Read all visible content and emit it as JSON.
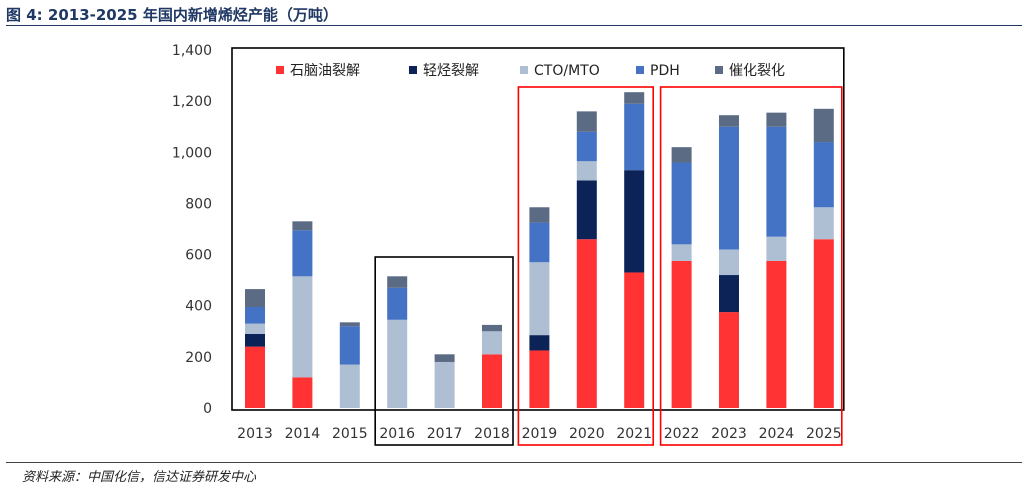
{
  "header": {
    "title": "图 4:  2013-2025 年国内新增烯烃产能（万吨）"
  },
  "footer": {
    "source": "资料来源：中国化信，信达证券研发中心"
  },
  "colors": {
    "naphtha": "#ff3333",
    "light_hc": "#0b2357",
    "cto": "#afbfd3",
    "pdh": "#4472c4",
    "fcc": "#5b6b84",
    "black_box": "#000000",
    "red_box": "#ff0000"
  },
  "chart_data": {
    "type": "bar",
    "stacked": true,
    "title": "2013-2025 年国内新增烯烃产能（万吨）",
    "xlabel": "",
    "ylabel": "",
    "ylim": [
      0,
      1400
    ],
    "yticks": [
      0,
      200,
      400,
      600,
      800,
      1000,
      1200,
      1400
    ],
    "ytick_labels": [
      "0",
      "200",
      "400",
      "600",
      "800",
      "1,000",
      "1,200",
      "1,400"
    ],
    "grid": false,
    "legend_position": "top",
    "categories": [
      "2013",
      "2014",
      "2015",
      "2016",
      "2017",
      "2018",
      "2019",
      "2020",
      "2021",
      "2022",
      "2023",
      "2024",
      "2025"
    ],
    "series": [
      {
        "name": "石脑油裂解",
        "color": "#ff3333",
        "values": [
          240,
          120,
          0,
          0,
          0,
          210,
          225,
          660,
          530,
          575,
          375,
          575,
          660
        ]
      },
      {
        "name": "轻烃裂解",
        "color": "#0b2357",
        "values": [
          50,
          0,
          0,
          0,
          0,
          0,
          60,
          230,
          400,
          0,
          145,
          0,
          0
        ]
      },
      {
        "name": "CTO/MTO",
        "color": "#afbfd3",
        "values": [
          40,
          395,
          170,
          345,
          180,
          90,
          285,
          75,
          0,
          65,
          100,
          95,
          125
        ]
      },
      {
        "name": "PDH",
        "color": "#4472c4",
        "values": [
          65,
          180,
          150,
          125,
          0,
          0,
          155,
          115,
          260,
          320,
          480,
          430,
          255
        ]
      },
      {
        "name": "催化裂化",
        "color": "#5b6b84",
        "values": [
          70,
          35,
          15,
          45,
          30,
          25,
          60,
          80,
          45,
          60,
          45,
          55,
          130
        ]
      }
    ]
  }
}
